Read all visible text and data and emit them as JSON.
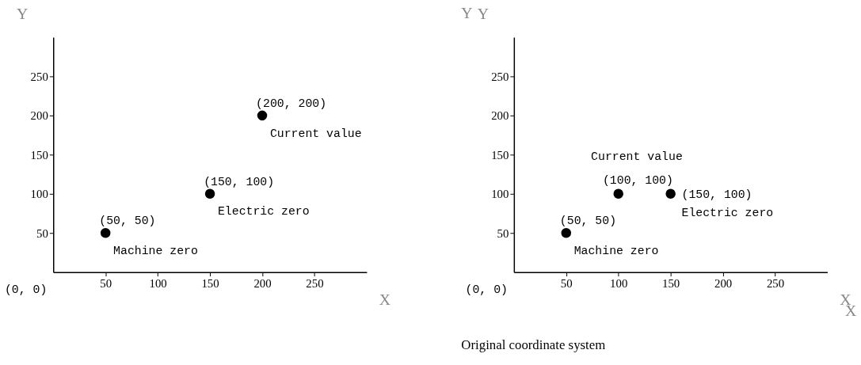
{
  "chart_data": [
    {
      "type": "scatter",
      "xlabel": "X",
      "ylabel": "Y",
      "x": [
        50,
        150,
        200
      ],
      "values": [
        50,
        100,
        200
      ],
      "color": "#000000",
      "marker": "circle",
      "grid": false,
      "xlim": [
        0,
        300
      ],
      "ylim": [
        0,
        300
      ],
      "xticks": [
        50,
        100,
        150,
        200,
        250
      ],
      "yticks": [
        50,
        100,
        150,
        200,
        250
      ],
      "annotations": [
        {
          "text": "(50, 50)",
          "x": 50,
          "y": 50
        },
        {
          "text": "Machine zero",
          "x": 50,
          "y": 50
        },
        {
          "text": "(150, 100)",
          "x": 150,
          "y": 100
        },
        {
          "text": "Electric zero",
          "x": 150,
          "y": 100
        },
        {
          "text": "(200, 200)",
          "x": 200,
          "y": 200
        },
        {
          "text": "Current value",
          "x": 200,
          "y": 200
        },
        "(0, 0)"
      ]
    },
    {
      "type": "scatter",
      "title": "Original coordinate system",
      "xlabel": "X",
      "ylabel": "Y",
      "x": [
        50,
        100,
        150
      ],
      "values": [
        50,
        100,
        100
      ],
      "color": "#000000",
      "marker": "circle",
      "grid": false,
      "xlim": [
        0,
        300
      ],
      "ylim": [
        0,
        300
      ],
      "xticks": [
        50,
        100,
        150,
        200,
        250
      ],
      "yticks": [
        50,
        100,
        150,
        200,
        250
      ],
      "annotations": [
        {
          "text": "(50, 50)",
          "x": 50,
          "y": 50
        },
        {
          "text": "Machine zero",
          "x": 50,
          "y": 50
        },
        {
          "text": "(100, 100)",
          "x": 100,
          "y": 100
        },
        {
          "text": "Current value",
          "x": 100,
          "y": 100
        },
        {
          "text": "(150, 100)",
          "x": 150,
          "y": 100
        },
        {
          "text": "Electric zero",
          "x": 150,
          "y": 100
        },
        "(0, 0)",
        "X",
        "Y"
      ]
    }
  ]
}
